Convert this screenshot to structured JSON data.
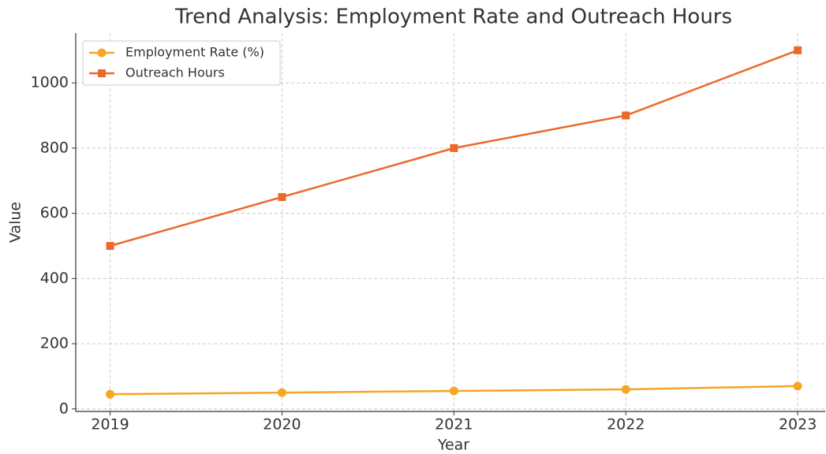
{
  "chart_data": {
    "type": "line",
    "title": "Trend Analysis: Employment Rate and Outreach Hours",
    "xlabel": "Year",
    "ylabel": "Value",
    "x": [
      2019,
      2020,
      2021,
      2022,
      2023
    ],
    "series": [
      {
        "name": "Employment Rate (%)",
        "color": "#f5a623",
        "marker": "circle",
        "values": [
          45,
          50,
          55,
          60,
          70
        ]
      },
      {
        "name": "Outreach Hours",
        "color": "#ea6a2a",
        "marker": "square",
        "values": [
          500,
          650,
          800,
          900,
          1100
        ]
      }
    ],
    "xlim": [
      2018.8,
      2023.16
    ],
    "xticks": [
      2019,
      2020,
      2021,
      2022,
      2023
    ],
    "ylim": [
      -7.75,
      1152.75
    ],
    "yticks": [
      0,
      200,
      400,
      600,
      800,
      1000
    ],
    "grid": true,
    "legend": "upper left"
  }
}
